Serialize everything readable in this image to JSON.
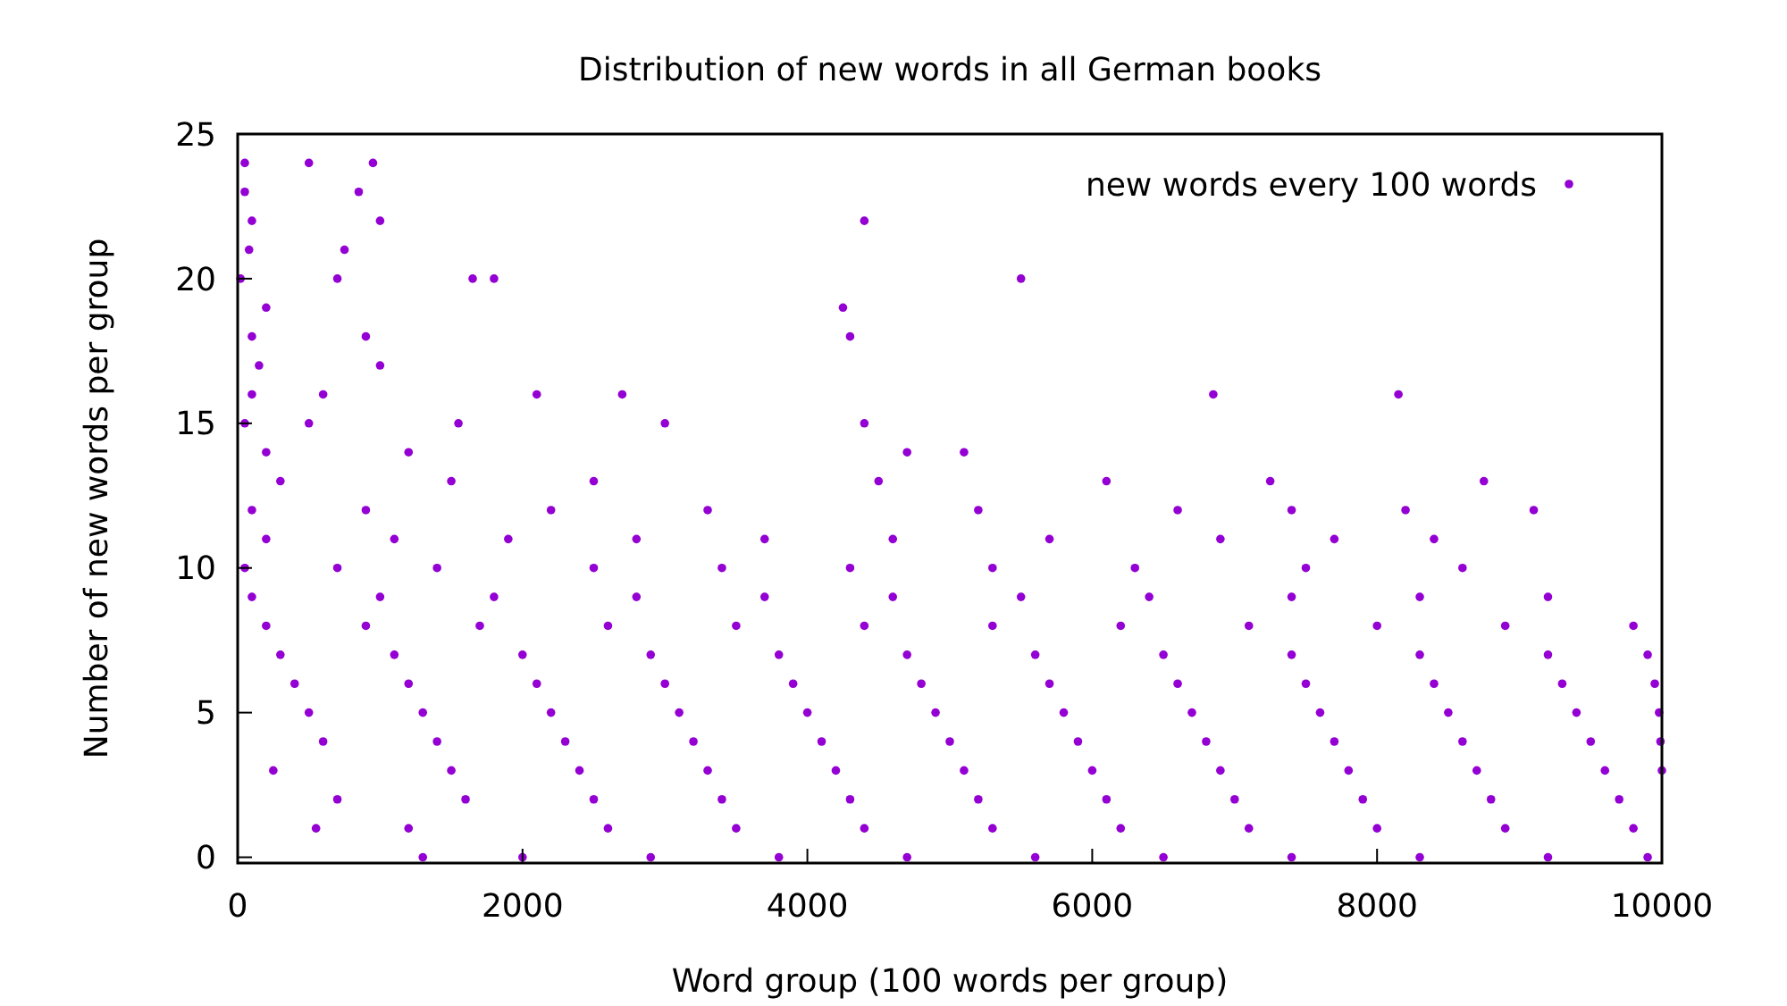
{
  "chart_data": {
    "type": "scatter",
    "title": "Distribution of new words in all German books",
    "xlabel": "Word group (100 words per group)",
    "ylabel": "Number of new words per group",
    "xlim": [
      0,
      10000
    ],
    "xticks": [
      0,
      2000,
      4000,
      6000,
      8000,
      10000
    ],
    "ylim": [
      -0.2,
      25
    ],
    "yticks": [
      0,
      5,
      10,
      15,
      20,
      25
    ],
    "grid": false,
    "legend": "top right",
    "marker": "circle",
    "series": [
      {
        "name": "new words every 100 words",
        "color": "#9400d3",
        "x": [
          50,
          500,
          950,
          50,
          850,
          100,
          1000,
          4400,
          80,
          750,
          20,
          700,
          1650,
          1800,
          5500,
          200,
          4250,
          100,
          900,
          4300,
          150,
          1000,
          100,
          600,
          2100,
          2700,
          6850,
          8150,
          50,
          500,
          1550,
          3000,
          4400,
          200,
          1200,
          4700,
          5100,
          300,
          1500,
          2500,
          4500,
          6100,
          7250,
          8750,
          100,
          900,
          2200,
          3300,
          5200,
          6600,
          7400,
          8200,
          9100,
          200,
          1100,
          1900,
          2800,
          3700,
          4600,
          5700,
          6900,
          7700,
          8400,
          50,
          700,
          1400,
          2500,
          3400,
          4300,
          5300,
          6300,
          7500,
          8600,
          100,
          1000,
          1800,
          2800,
          3700,
          4600,
          5500,
          6400,
          7400,
          8300,
          9200,
          200,
          900,
          1700,
          2600,
          3500,
          4400,
          5300,
          6200,
          7100,
          8000,
          8900,
          9800,
          300,
          1100,
          2000,
          2900,
          3800,
          4700,
          5600,
          6500,
          7400,
          8300,
          9200,
          9900,
          400,
          1200,
          2100,
          3000,
          3900,
          4800,
          5700,
          6600,
          7500,
          8400,
          9300,
          9950,
          500,
          1300,
          2200,
          3100,
          4000,
          4900,
          5800,
          6700,
          7600,
          8500,
          9400,
          9980,
          600,
          1400,
          2300,
          3200,
          4100,
          5000,
          5900,
          6800,
          7700,
          8600,
          9500,
          9990,
          250,
          1500,
          2400,
          3300,
          4200,
          5100,
          6000,
          6900,
          7800,
          8700,
          9600,
          10000,
          700,
          1600,
          2500,
          3400,
          4300,
          5200,
          6100,
          7000,
          7900,
          8800,
          9700,
          550,
          1200,
          2600,
          3500,
          4400,
          5300,
          6200,
          7100,
          8000,
          8900,
          9800,
          1300,
          2000,
          2900,
          3800,
          4700,
          5600,
          6500,
          7400,
          8300,
          9200,
          9900
        ],
        "values": [
          24,
          24,
          24,
          23,
          23,
          22,
          22,
          22,
          21,
          21,
          20,
          20,
          20,
          20,
          20,
          19,
          19,
          18,
          18,
          18,
          17,
          17,
          16,
          16,
          16,
          16,
          16,
          16,
          15,
          15,
          15,
          15,
          15,
          14,
          14,
          14,
          14,
          13,
          13,
          13,
          13,
          13,
          13,
          13,
          12,
          12,
          12,
          12,
          12,
          12,
          12,
          12,
          12,
          11,
          11,
          11,
          11,
          11,
          11,
          11,
          11,
          11,
          11,
          10,
          10,
          10,
          10,
          10,
          10,
          10,
          10,
          10,
          10,
          9,
          9,
          9,
          9,
          9,
          9,
          9,
          9,
          9,
          9,
          9,
          8,
          8,
          8,
          8,
          8,
          8,
          8,
          8,
          8,
          8,
          8,
          8,
          7,
          7,
          7,
          7,
          7,
          7,
          7,
          7,
          7,
          7,
          7,
          7,
          6,
          6,
          6,
          6,
          6,
          6,
          6,
          6,
          6,
          6,
          6,
          6,
          5,
          5,
          5,
          5,
          5,
          5,
          5,
          5,
          5,
          5,
          5,
          5,
          4,
          4,
          4,
          4,
          4,
          4,
          4,
          4,
          4,
          4,
          4,
          4,
          3,
          3,
          3,
          3,
          3,
          3,
          3,
          3,
          3,
          3,
          3,
          3,
          2,
          2,
          2,
          2,
          2,
          2,
          2,
          2,
          2,
          2,
          2,
          1,
          1,
          1,
          1,
          1,
          1,
          1,
          1,
          1,
          1,
          1,
          0,
          0,
          0,
          0,
          0,
          0,
          0,
          0,
          0,
          0,
          0
        ]
      }
    ]
  }
}
